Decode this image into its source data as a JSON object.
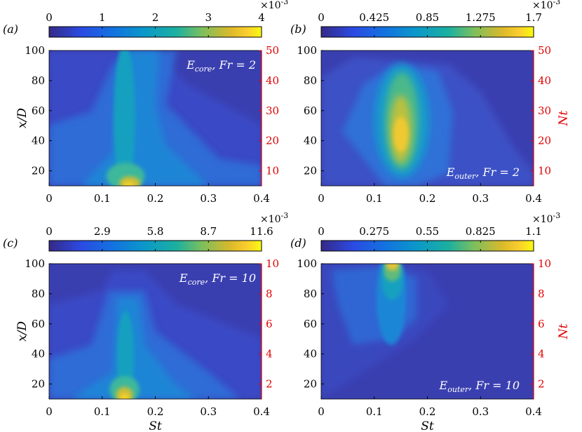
{
  "colors": {
    "left_axis": "#000000",
    "right_axis": "#e00000",
    "annotation": "#ffffff"
  },
  "chart_data": [
    {
      "type": "heatmap",
      "panel": "(a)",
      "annotation": "E_core, Fr = 2",
      "annotation_main": "E",
      "annotation_sub": "core",
      "annotation_rest": ", Fr = 2",
      "xlabel": "",
      "ylabel": "x/D",
      "y2label": "",
      "xlim": [
        0,
        0.4
      ],
      "ylim": [
        10,
        100
      ],
      "y2lim": [
        5,
        50
      ],
      "xticks": [
        "0",
        "0.1",
        "0.2",
        "0.3",
        "0.4"
      ],
      "yticks": [
        "20",
        "40",
        "60",
        "80",
        "100"
      ],
      "y2ticks": [
        "10",
        "20",
        "30",
        "40",
        "50"
      ],
      "colorbar": {
        "ticks": [
          "0",
          "1",
          "2",
          "3",
          "4"
        ],
        "range": [
          0,
          4
        ],
        "multiplier": "×10",
        "exponent": "-3"
      },
      "peaks": [
        {
          "st": 0.15,
          "x": 10,
          "value": 4.0
        },
        {
          "st": 0.14,
          "x": 60,
          "value": 1.6
        }
      ]
    },
    {
      "type": "heatmap",
      "panel": "(b)",
      "annotation": "E_outer, Fr = 2",
      "annotation_main": "E",
      "annotation_sub": "outer",
      "annotation_rest": ", Fr = 2",
      "xlabel": "",
      "ylabel": "",
      "y2label": "Nt",
      "xlim": [
        0,
        0.4
      ],
      "ylim": [
        10,
        100
      ],
      "y2lim": [
        5,
        50
      ],
      "xticks": [
        "0",
        "0.1",
        "0.2",
        "0.3",
        "0.4"
      ],
      "yticks": [
        "20",
        "40",
        "60",
        "80",
        "100"
      ],
      "y2ticks": [
        "10",
        "20",
        "30",
        "40",
        "50"
      ],
      "colorbar": {
        "ticks": [
          "0",
          "0.425",
          "0.85",
          "1.275",
          "1.7"
        ],
        "range": [
          0,
          1.7
        ],
        "multiplier": "×10",
        "exponent": "-3"
      },
      "peaks": [
        {
          "st": 0.15,
          "x": 42,
          "value": 1.6
        }
      ]
    },
    {
      "type": "heatmap",
      "panel": "(c)",
      "annotation": "E_core, Fr = 10",
      "annotation_main": "E",
      "annotation_sub": "core",
      "annotation_rest": ", Fr = 10",
      "xlabel": "St",
      "ylabel": "x/D",
      "y2label": "",
      "xlim": [
        0,
        0.4
      ],
      "ylim": [
        10,
        100
      ],
      "y2lim": [
        1,
        10
      ],
      "xticks": [
        "0",
        "0.1",
        "0.2",
        "0.3",
        "0.4"
      ],
      "yticks": [
        "20",
        "40",
        "60",
        "80",
        "100"
      ],
      "y2ticks": [
        "2",
        "4",
        "6",
        "8",
        "10"
      ],
      "colorbar": {
        "ticks": [
          "0",
          "2.9",
          "5.8",
          "8.7",
          "11.6"
        ],
        "range": [
          0,
          11.6
        ],
        "multiplier": "×10",
        "exponent": "-3"
      },
      "peaks": [
        {
          "st": 0.14,
          "x": 12,
          "value": 11.6
        }
      ]
    },
    {
      "type": "heatmap",
      "panel": "(d)",
      "annotation": "E_outer, Fr = 10",
      "annotation_main": "E",
      "annotation_sub": "outer",
      "annotation_rest": ", Fr = 10",
      "xlabel": "St",
      "ylabel": "",
      "y2label": "Nt",
      "xlim": [
        0,
        0.4
      ],
      "ylim": [
        10,
        100
      ],
      "y2lim": [
        1,
        10
      ],
      "xticks": [
        "0",
        "0.1",
        "0.2",
        "0.3",
        "0.4"
      ],
      "yticks": [
        "20",
        "40",
        "60",
        "80",
        "100"
      ],
      "y2ticks": [
        "2",
        "4",
        "6",
        "8",
        "10"
      ],
      "colorbar": {
        "ticks": [
          "0",
          "0.275",
          "0.55",
          "0.825",
          "1.1"
        ],
        "range": [
          0,
          1.1
        ],
        "multiplier": "×10",
        "exponent": "-3"
      },
      "peaks": [
        {
          "st": 0.135,
          "x": 98,
          "value": 1.1
        }
      ]
    }
  ]
}
